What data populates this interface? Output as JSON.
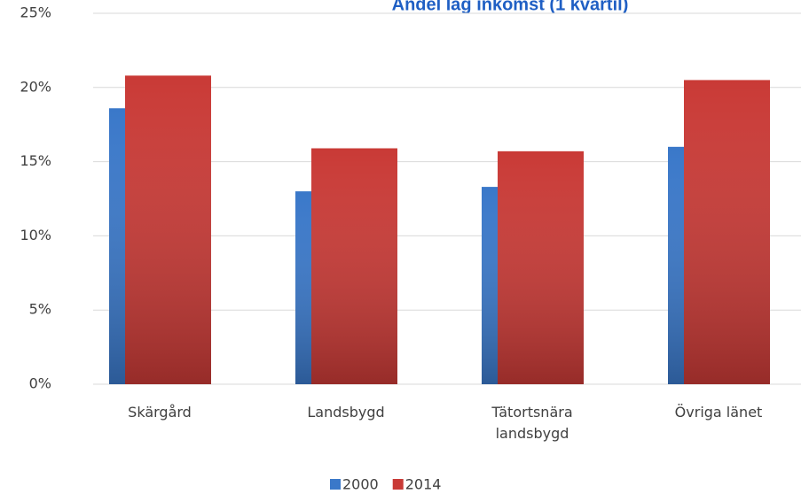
{
  "chart_data": {
    "type": "bar",
    "title": "Andel låg inkomst (1 kvartil)",
    "categories": [
      "Skärgård",
      "Landsbygd",
      "Tätortsnära landsbygd",
      "Övriga länet"
    ],
    "series": [
      {
        "name": "2000",
        "color": "#3a78c9",
        "values": [
          18.6,
          13.0,
          13.3,
          16.0
        ]
      },
      {
        "name": "2014",
        "color": "#c93a36",
        "values": [
          20.8,
          15.9,
          15.7,
          20.5
        ]
      }
    ],
    "ylim": [
      0,
      25
    ],
    "yticks": [
      {
        "value": 0,
        "label": "0%"
      },
      {
        "value": 5,
        "label": "5%"
      },
      {
        "value": 10,
        "label": "10%"
      },
      {
        "value": 15,
        "label": "15%"
      },
      {
        "value": 20,
        "label": "20%"
      },
      {
        "value": 25,
        "label": "25%"
      }
    ],
    "grid": true,
    "legend": "bottom"
  }
}
